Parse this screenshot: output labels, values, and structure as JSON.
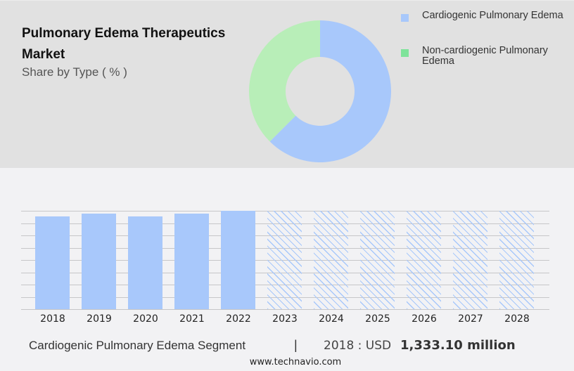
{
  "header": {
    "title": "Pulmonary Edema Therapeutics Market",
    "subtitle": "Share by Type ( % )"
  },
  "legend": [
    {
      "label": "Cardiogenic Pulmonary Edema",
      "color": "#a8c8fb"
    },
    {
      "label": "Non-cardiogenic Pulmonary Edema",
      "color": "#7ee39a"
    }
  ],
  "footer": {
    "segment": "Cardiogenic Pulmonary Edema Segment",
    "separator": "|",
    "year_label": "2018 : USD",
    "value": "1,333.10 million",
    "website": "www.technavio.com"
  },
  "colors": {
    "donut_blue": "#a8c8fb",
    "donut_green": "#b8eeb8",
    "bar": "#a8c8fb",
    "top_panel": "#e1e1e1",
    "bottom_panel": "#f2f2f4"
  },
  "chart_data": [
    {
      "type": "pie",
      "subtype": "donut",
      "title": "Pulmonary Edema Therapeutics Market",
      "subtitle": "Share by Type ( % )",
      "categories": [
        "Cardiogenic Pulmonary Edema",
        "Non-cardiogenic Pulmonary Edema"
      ],
      "values": [
        62.5,
        37.5
      ],
      "legend_position": "right"
    },
    {
      "type": "bar",
      "title": "Cardiogenic Pulmonary Edema Segment",
      "categories": [
        "2018",
        "2019",
        "2020",
        "2021",
        "2022",
        "2023",
        "2024",
        "2025",
        "2026",
        "2027",
        "2028"
      ],
      "values": [
        1333.1,
        1370,
        1333,
        1370,
        1415,
        null,
        null,
        null,
        null,
        null,
        null
      ],
      "forecast": [
        false,
        false,
        false,
        false,
        false,
        true,
        true,
        true,
        true,
        true,
        true
      ],
      "forecast_style": "hatched, full height (values not shown)",
      "xlabel": "",
      "ylabel": "",
      "grid": true,
      "annotation": "2018 : USD 1,333.10 million"
    }
  ]
}
